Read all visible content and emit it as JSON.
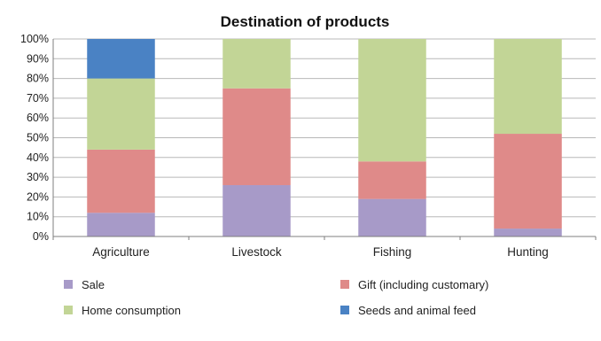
{
  "chart_data": {
    "type": "bar",
    "stacked": true,
    "title": "Destination of products",
    "xlabel": "",
    "ylabel": "",
    "ylim": [
      0,
      100
    ],
    "y_tick_labels": [
      "0%",
      "10%",
      "20%",
      "30%",
      "40%",
      "50%",
      "60%",
      "70%",
      "80%",
      "90%",
      "100%"
    ],
    "grid": true,
    "legend_position": "bottom",
    "categories": [
      "Agriculture",
      "Livestock",
      "Fishing",
      "Hunting"
    ],
    "series": [
      {
        "name": "Sale",
        "color": "#a79ac8",
        "values": [
          12,
          26,
          19,
          4
        ]
      },
      {
        "name": "Gift (including customary)",
        "color": "#df8a89",
        "values": [
          32,
          49,
          19,
          48
        ]
      },
      {
        "name": "Home consumption",
        "color": "#c2d596",
        "values": [
          36,
          25,
          62,
          48
        ]
      },
      {
        "name": "Seeds and animal feed",
        "color": "#4a82c4",
        "values": [
          20,
          0,
          0,
          0
        ]
      }
    ]
  }
}
